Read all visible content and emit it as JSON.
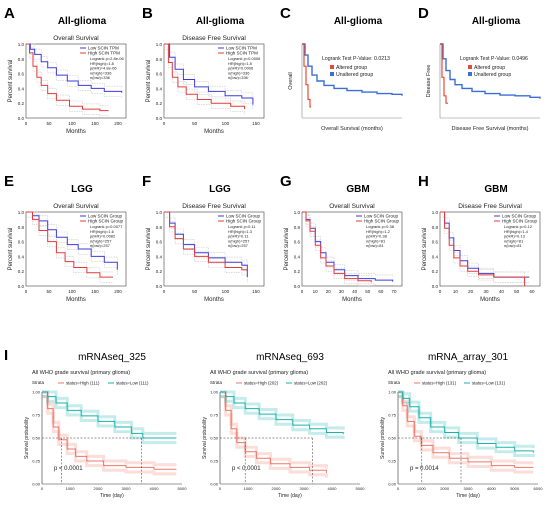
{
  "figure": {
    "panels": [
      {
        "letter": "A",
        "title": "All-glioma",
        "subtitle": "Overall Survival",
        "xlabel": "Months",
        "ylabel": "Percent survival",
        "legend": [
          "Low SCIN TPM",
          "High SCIN TPM"
        ],
        "stats": [
          "Logrank p=2.8e-06",
          "HR(high)=1.8",
          "p(HR)=4.8e-06",
          "n(high)=336",
          "n(low)=336"
        ],
        "xticks": [
          "0",
          "50",
          "100",
          "150",
          "200"
        ],
        "yticks": [
          "0.0",
          "0.2",
          "0.4",
          "0.6",
          "0.8",
          "1.0"
        ]
      },
      {
        "letter": "B",
        "title": "All-glioma",
        "subtitle": "Disease Free Survival",
        "xlabel": "Months",
        "ylabel": "Percent survival",
        "legend": [
          "Low SCIN TPM",
          "High SCIN TPM"
        ],
        "stats": [
          "Logrank p=0.0006",
          "HR(high)=1.5",
          "p(HR)=0.0006",
          "n(high)=336",
          "n(low)=336"
        ],
        "xticks": [
          "0",
          "50",
          "100",
          "150"
        ],
        "yticks": [
          "0.0",
          "0.2",
          "0.4",
          "0.6",
          "0.8",
          "1.0"
        ]
      },
      {
        "letter": "C",
        "title": "All-glioma",
        "subtitle": "",
        "xlabel": "Overall Survival (months)",
        "ylabel": "Overall",
        "legend": [
          "Altered group",
          "Unaltered group"
        ],
        "stats": [
          "Logrank Test P-Value: 0.0213"
        ],
        "xticks": [],
        "yticks": []
      },
      {
        "letter": "D",
        "title": "All-glioma",
        "subtitle": "",
        "xlabel": "Disease Free Survival (months)",
        "ylabel": "Disease Free",
        "legend": [
          "Altered group",
          "Unaltered group"
        ],
        "stats": [
          "Logrank Test P-Value: 0.0496"
        ],
        "xticks": [],
        "yticks": []
      },
      {
        "letter": "E",
        "title": "LGG",
        "subtitle": "Overall Survival",
        "xlabel": "Months",
        "ylabel": "Percent survival",
        "legend": [
          "Low SCIN Group",
          "High SCIN Group"
        ],
        "stats": [
          "Logrank p=0.0077",
          "HR(high)=1.6",
          "p(HR)=0.0082",
          "n(high)=257",
          "n(low)=257"
        ],
        "xticks": [
          "0",
          "50",
          "100",
          "150",
          "200"
        ],
        "yticks": [
          "0.0",
          "0.2",
          "0.4",
          "0.6",
          "0.8",
          "1.0"
        ]
      },
      {
        "letter": "F",
        "title": "LGG",
        "subtitle": "Disease Free Survival",
        "xlabel": "Months",
        "ylabel": "Percent survival",
        "legend": [
          "Low SCIN Group",
          "High SCIN Group"
        ],
        "stats": [
          "Logrank p=0.11",
          "HR(high)=1.3",
          "p(HR)=0.11",
          "n(high)=257",
          "n(low)=257"
        ],
        "xticks": [
          "0",
          "50",
          "100",
          "150"
        ],
        "yticks": [
          "0.0",
          "0.2",
          "0.4",
          "0.6",
          "0.8",
          "1.0"
        ]
      },
      {
        "letter": "G",
        "title": "GBM",
        "subtitle": "Overall Survival",
        "xlabel": "Months",
        "ylabel": "Percent survival",
        "legend": [
          "Low SCIN Group",
          "High SCIN Group"
        ],
        "stats": [
          "Logrank p=0.38",
          "HR(high)=1.2",
          "p(HR)=0.38",
          "n(high)=81",
          "n(low)=81"
        ],
        "xticks": [
          "0",
          "10",
          "20",
          "30",
          "40",
          "50",
          "60",
          "70"
        ],
        "yticks": [
          "0.0",
          "0.2",
          "0.4",
          "0.6",
          "0.8",
          "1.0"
        ]
      },
      {
        "letter": "H",
        "title": "GBM",
        "subtitle": "Disease Free Survival",
        "xlabel": "Months",
        "ylabel": "Percent survival",
        "legend": [
          "Low SCIN Group",
          "High SCIN Group"
        ],
        "stats": [
          "Logrank p=0.12",
          "HR(high)=1.4",
          "p(HR)=0.13",
          "n(high)=81",
          "n(low)=81"
        ],
        "xticks": [
          "0",
          "10",
          "20",
          "30",
          "40",
          "50",
          "60"
        ],
        "yticks": [
          "0.0",
          "0.2",
          "0.4",
          "0.6",
          "0.8",
          "1.0"
        ]
      }
    ],
    "bottom_letter": "I",
    "bottom_panels": [
      {
        "title": "mRNAseq_325",
        "subtitle": "All WHO grade survival (primary glioma)",
        "strata_label": "Strata",
        "legend": [
          "status=High (111)",
          "status=Low (111)"
        ],
        "pvalue": "p < 0.0001",
        "xlabel": "Time (day)",
        "ylabel": "Survival probability",
        "xticks": [
          "0",
          "1000",
          "2000",
          "3000",
          "4000",
          "5000"
        ],
        "yticks": [
          "0.00",
          "0.25",
          "0.50",
          "0.75",
          "1.00"
        ]
      },
      {
        "title": "mRNAseq_693",
        "subtitle": "All WHO grade survival (primary glioma)",
        "strata_label": "Strata",
        "legend": [
          "status=High (202)",
          "status=Low (202)"
        ],
        "pvalue": "p < 0.0001",
        "xlabel": "Time (day)",
        "ylabel": "Survival probability",
        "xticks": [
          "0",
          "1000",
          "2000",
          "3000",
          "4000",
          "5000"
        ],
        "yticks": [
          "0.00",
          "0.25",
          "0.50",
          "0.75",
          "1.00"
        ]
      },
      {
        "title": "mRNA_array_301",
        "subtitle": "All WHO grade survival (primary glioma)",
        "strata_label": "Strata",
        "legend": [
          "status=High (131)",
          "status=Low (131)"
        ],
        "pvalue": "p = 0.0014",
        "xlabel": "Time (day)",
        "ylabel": "Survival probability",
        "xticks": [
          "0",
          "1000",
          "2000",
          "3000",
          "4000",
          "5000",
          "6000"
        ],
        "yticks": [
          "0.00",
          "0.25",
          "0.50",
          "0.75",
          "1.00"
        ]
      }
    ],
    "colors": {
      "low": "#3b3bdc",
      "high": "#e33a3a",
      "altered": "#e84a3a",
      "unaltered": "#3a6fd8",
      "ci": "#c8c8c8",
      "teal": "#17b3ad",
      "salmon": "#ef7668"
    }
  }
}
